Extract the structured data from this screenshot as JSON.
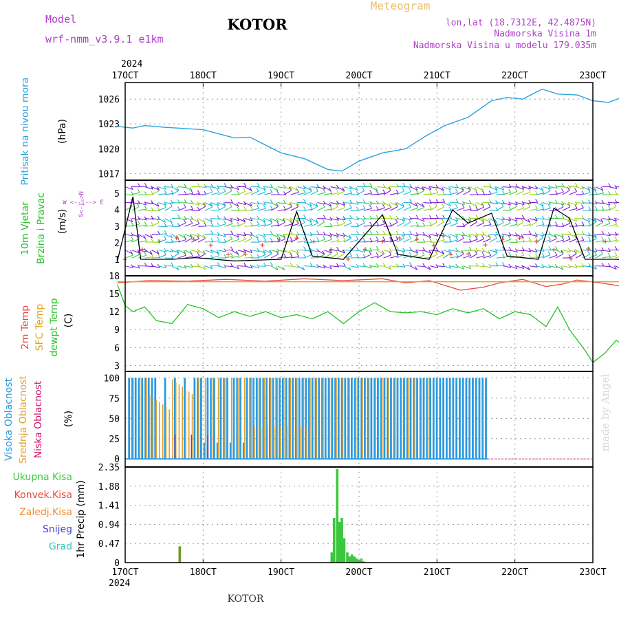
{
  "header": {
    "model_label": "Model",
    "model_name": "wrf-nmm_v3.9.1 e1km",
    "title": "KOTOR",
    "meteogram": "Meteogram",
    "lonlat": "lon,lat (18.7312E, 42.4875N)",
    "altitude": "Nadmorska Visina 1m",
    "model_altitude": "Nadmorska Visina u modelu 179.035m",
    "footer_title": "KOTOR",
    "watermark": "made by Angel"
  },
  "colors": {
    "pressure": "#29a3e0",
    "temp2m": "#e8483c",
    "sfctemp": "#e3a020",
    "dewpt": "#22c322",
    "high_cloud": "#2a9ae0",
    "mid_cloud": "#dca030",
    "low_cloud": "#d0186c",
    "precip": "#3cc83c",
    "wind_black": "#000000",
    "wind_red": "#e8483c"
  },
  "x_axis": {
    "year": "2024",
    "labels": [
      "17OCT",
      "18OCT",
      "19OCT",
      "20OCT",
      "21OCT",
      "22OCT",
      "23OCT"
    ]
  },
  "panels": {
    "pressure": {
      "ylabel_1": "Pritisak na nivou mora",
      "ylabel_2": "(hPa)",
      "ticks": [
        "1017",
        "1020",
        "1023",
        "1026"
      ]
    },
    "wind": {
      "ylabel_1": "10m Vjetar",
      "ylabel_2": "Brzina i Pravac",
      "ylabel_3": "(m/s)",
      "compass": "W <--|--> E",
      "compass_v": "S<-|->N",
      "ticks": [
        "1",
        "2",
        "3",
        "4",
        "5"
      ]
    },
    "temp": {
      "label_2m": "2m Temp",
      "label_sfc": "SFC Temp",
      "label_dew": "dewpt Temp",
      "ylabel_unit": "(C)",
      "ticks": [
        "3",
        "6",
        "9",
        "12",
        "15",
        "18"
      ]
    },
    "cloud": {
      "label_high": "Visoka Oblacnost",
      "label_mid": "Srednja Oblacnost",
      "label_low": "Niska Oblacnost",
      "ylabel_unit": "(%)",
      "ticks": [
        "0",
        "25",
        "50",
        "75",
        "100"
      ]
    },
    "precip": {
      "legend": [
        "Ukupna Kisa",
        "Konvek.Kisa",
        "Zaledj.Kisa",
        "Snijeg",
        "Grad"
      ],
      "ylabel": "1hr Precip (mm)",
      "ticks": [
        "0",
        "0.47",
        "0.94",
        "1.41",
        "1.88",
        "2.35"
      ]
    }
  },
  "chart_data": [
    {
      "type": "line",
      "title": "",
      "ylabel": "Pritisak na nivou mora (hPa)",
      "ylim": [
        1016.2,
        1028.0
      ],
      "x_unit": "day offset from 17OCT 00UTC",
      "series": [
        {
          "name": "Pritisak na nivou mora",
          "x": [
            -0.1,
            0.1,
            0.25,
            0.5,
            1.0,
            1.4,
            1.6,
            2.0,
            2.3,
            2.6,
            2.78,
            3.0,
            3.3,
            3.6,
            3.85,
            4.1,
            4.4,
            4.7,
            4.9,
            5.1,
            5.35,
            5.55,
            5.8,
            6.0,
            6.2,
            6.4,
            6.7,
            6.9,
            6.98
          ],
          "y": [
            1022.7,
            1022.5,
            1022.8,
            1022.6,
            1022.3,
            1021.3,
            1021.4,
            1019.5,
            1018.8,
            1017.5,
            1017.3,
            1018.5,
            1019.5,
            1020.0,
            1021.5,
            1022.8,
            1023.8,
            1025.8,
            1026.2,
            1026.0,
            1027.2,
            1026.6,
            1026.5,
            1025.8,
            1025.6,
            1026.3,
            1025.9,
            1025.8,
            1025.3
          ]
        }
      ]
    },
    {
      "type": "line",
      "title": "",
      "ylabel": "Temp (C)",
      "ylim": [
        2.0,
        18.0
      ],
      "series": [
        {
          "name": "2m Temp",
          "x": [
            -0.1,
            0.3,
            0.8,
            1.3,
            1.8,
            2.3,
            2.8,
            3.3,
            3.6,
            3.9,
            4.3,
            4.6,
            4.8,
            5.1,
            5.4,
            5.6,
            5.8,
            6.1,
            6.4,
            6.7,
            6.98
          ],
          "y": [
            16.8,
            17.2,
            17.1,
            17.4,
            17.1,
            17.5,
            17.2,
            17.5,
            16.8,
            17.2,
            15.6,
            16.1,
            16.8,
            17.4,
            16.2,
            16.6,
            17.3,
            16.8,
            16.2,
            17.3,
            17.2
          ]
        },
        {
          "name": "SFC Temp",
          "x": [
            -0.1,
            6.98
          ],
          "y": [
            17.0,
            17.0
          ]
        },
        {
          "name": "dewpt Temp",
          "x": [
            -0.1,
            0.0,
            0.1,
            0.25,
            0.4,
            0.6,
            0.8,
            1.0,
            1.2,
            1.4,
            1.6,
            1.8,
            2.0,
            2.2,
            2.4,
            2.6,
            2.8,
            3.0,
            3.2,
            3.4,
            3.6,
            3.8,
            4.0,
            4.2,
            4.4,
            4.6,
            4.8,
            5.0,
            5.2,
            5.4,
            5.55,
            5.7,
            5.9,
            6.0,
            6.15,
            6.3,
            6.5,
            6.7,
            6.85,
            6.98
          ],
          "y": [
            16.5,
            13.0,
            12.0,
            12.8,
            10.5,
            10.0,
            13.2,
            12.5,
            11.0,
            12.0,
            11.2,
            12.0,
            11.0,
            11.5,
            10.8,
            12.0,
            10.0,
            12.0,
            13.5,
            12.0,
            11.8,
            12.0,
            11.5,
            12.5,
            11.8,
            12.5,
            10.8,
            12.0,
            11.5,
            9.5,
            12.8,
            9.0,
            5.5,
            3.5,
            5.0,
            7.2,
            5.5,
            6.0,
            12.5,
            9.5
          ]
        }
      ]
    },
    {
      "type": "bar",
      "title": "",
      "ylabel": "Oblacnost (%)",
      "ylim": [
        0,
        100
      ],
      "series": [
        {
          "name": "Visoka Oblacnost",
          "note_x_range": [
            0.05,
            4.65
          ],
          "values_summary": [
            100
          ]
        },
        {
          "name": "Srednja Oblacnost",
          "note_x_range": [
            0.05,
            3.95
          ],
          "values_summary": [
            100
          ]
        },
        {
          "name": "Niska Oblacnost",
          "note_x_range": [
            0.6,
            1.2
          ],
          "values_summary": [
            25
          ]
        }
      ]
    },
    {
      "type": "bar",
      "title": "",
      "ylabel": "1hr Precip (mm)",
      "ylim": [
        0,
        2.35
      ],
      "series": [
        {
          "name": "Ukupna Kisa",
          "x": [
            0.7,
            2.65,
            2.68,
            2.72,
            2.75,
            2.78,
            2.81,
            2.85,
            2.88,
            2.91,
            2.94,
            2.97,
            3.0,
            3.03,
            3.06
          ],
          "y": [
            0.4,
            0.25,
            1.1,
            2.3,
            1.0,
            1.1,
            0.6,
            0.25,
            0.15,
            0.2,
            0.15,
            0.1,
            0.05,
            0.1,
            0.03
          ]
        }
      ]
    }
  ]
}
